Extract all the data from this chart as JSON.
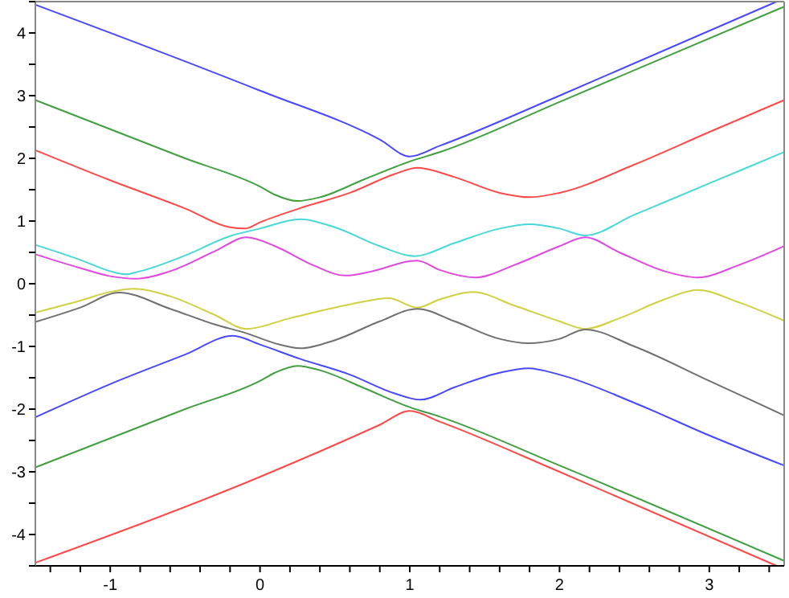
{
  "chart_data": {
    "type": "line",
    "xlim": [
      -1.5,
      3.5
    ],
    "ylim": [
      -4.5,
      4.5
    ],
    "xticks": [
      {
        "value": -1.4,
        "label": null
      },
      {
        "value": -1.2,
        "label": null
      },
      -1,
      {
        "value": -0.8,
        "label": null
      },
      {
        "value": -0.6,
        "label": null
      },
      {
        "value": -0.4,
        "label": null
      },
      {
        "value": -0.2,
        "label": null
      },
      0,
      {
        "value": 0.2,
        "label": null
      },
      {
        "value": 0.4,
        "label": null
      },
      {
        "value": 0.6,
        "label": null
      },
      {
        "value": 0.8,
        "label": null
      },
      1,
      {
        "value": 1.2,
        "label": null
      },
      {
        "value": 1.4,
        "label": null
      },
      {
        "value": 1.6,
        "label": null
      },
      {
        "value": 1.8,
        "label": null
      },
      2,
      {
        "value": 2.2,
        "label": null
      },
      {
        "value": 2.4,
        "label": null
      },
      {
        "value": 2.6,
        "label": null
      },
      {
        "value": 2.8,
        "label": null
      },
      3,
      {
        "value": 3.2,
        "label": null
      },
      {
        "value": 3.4,
        "label": null
      }
    ],
    "yticks": [
      {
        "value": -4.5,
        "label": null
      },
      -4,
      {
        "value": -3.5,
        "label": null
      },
      -3,
      {
        "value": -2.5,
        "label": null
      },
      -2,
      {
        "value": -1.5,
        "label": null
      },
      -1,
      {
        "value": -0.5,
        "label": null
      },
      0,
      {
        "value": 0.5,
        "label": null
      },
      1,
      {
        "value": 1.5,
        "label": null
      },
      2,
      {
        "value": 2.5,
        "label": null
      },
      3,
      {
        "value": 3.5,
        "label": null
      },
      4,
      {
        "value": 4.5,
        "label": null
      }
    ],
    "grid": false,
    "marker": "none",
    "line_style": "solid",
    "series": [
      {
        "color": "#4848ff",
        "x": [
          -1.5,
          0,
          0.8,
          1.0,
          1.2,
          2,
          3.45
        ],
        "values": [
          4.45,
          3.08,
          2.3,
          2.03,
          2.2,
          3.0,
          4.5
        ]
      },
      {
        "color": "#40a040",
        "x": [
          -1.5,
          -0.5,
          0,
          0.1,
          0.25,
          0.4,
          0.7,
          1.0,
          1.2,
          2,
          3.5
        ],
        "values": [
          2.93,
          2.0,
          1.55,
          1.42,
          1.32,
          1.38,
          1.67,
          1.95,
          2.1,
          2.9,
          4.42
        ]
      },
      {
        "color": "#ff4848",
        "x": [
          -1.5,
          -1.0,
          -0.5,
          -0.2,
          -0.1,
          0,
          0.3,
          0.6,
          0.9,
          1.05,
          1.3,
          1.6,
          1.8,
          2.0,
          2.5,
          3.0,
          3.5
        ],
        "values": [
          2.13,
          1.65,
          1.2,
          0.9,
          0.88,
          0.98,
          1.23,
          1.45,
          1.75,
          1.85,
          1.7,
          1.45,
          1.38,
          1.45,
          1.9,
          2.42,
          2.93
        ]
      },
      {
        "color": "#48d8d8",
        "x": [
          -1.5,
          -1.2,
          -1.0,
          -0.9,
          -0.8,
          -0.5,
          -0.2,
          0,
          0.27,
          0.5,
          0.8,
          1.03,
          1.3,
          1.6,
          1.8,
          2.0,
          2.17,
          2.5,
          3.0,
          3.5
        ],
        "values": [
          0.62,
          0.38,
          0.2,
          0.15,
          0.2,
          0.45,
          0.76,
          0.88,
          1.03,
          0.9,
          0.6,
          0.44,
          0.65,
          0.88,
          0.95,
          0.88,
          0.77,
          1.1,
          1.6,
          2.1
        ]
      },
      {
        "color": "#e048e0",
        "x": [
          -1.5,
          -1.2,
          -1.0,
          -0.83,
          -0.6,
          -0.3,
          -0.09,
          0.1,
          0.35,
          0.57,
          0.75,
          1.0,
          1.05,
          1.2,
          1.44,
          1.7,
          2.0,
          2.17,
          2.4,
          2.7,
          2.92,
          3.2,
          3.5
        ],
        "values": [
          0.47,
          0.25,
          0.12,
          0.08,
          0.2,
          0.52,
          0.74,
          0.6,
          0.3,
          0.13,
          0.2,
          0.36,
          0.37,
          0.22,
          0.1,
          0.3,
          0.6,
          0.74,
          0.5,
          0.2,
          0.1,
          0.3,
          0.6
        ]
      },
      {
        "color": "#d0d040",
        "x": [
          -1.5,
          -1.2,
          -1.0,
          -0.84,
          -0.6,
          -0.3,
          -0.09,
          0.2,
          0.6,
          0.86,
          1.05,
          1.2,
          1.42,
          1.7,
          2.0,
          2.17,
          2.4,
          2.7,
          2.92,
          3.2,
          3.5
        ],
        "values": [
          -0.46,
          -0.27,
          -0.13,
          -0.08,
          -0.2,
          -0.5,
          -0.72,
          -0.55,
          -0.33,
          -0.23,
          -0.38,
          -0.25,
          -0.13,
          -0.35,
          -0.6,
          -0.72,
          -0.55,
          -0.25,
          -0.1,
          -0.3,
          -0.59
        ]
      },
      {
        "color": "#707070",
        "x": [
          -1.5,
          -1.2,
          -0.94,
          -0.6,
          -0.3,
          -0.09,
          0.1,
          0.27,
          0.5,
          0.8,
          1.05,
          1.3,
          1.6,
          1.79,
          2.0,
          2.17,
          2.5,
          3.0,
          3.5
        ],
        "values": [
          -0.61,
          -0.38,
          -0.14,
          -0.4,
          -0.65,
          -0.79,
          -0.95,
          -1.03,
          -0.9,
          -0.6,
          -0.4,
          -0.6,
          -0.88,
          -0.95,
          -0.88,
          -0.73,
          -1.0,
          -1.55,
          -2.1
        ]
      },
      {
        "color": "#4848ff",
        "x": [
          -1.5,
          -1.0,
          -0.5,
          -0.18,
          0,
          0.27,
          0.6,
          0.9,
          1.07,
          1.3,
          1.6,
          1.79,
          2.0,
          2.5,
          3.0,
          3.5
        ],
        "values": [
          -2.13,
          -1.6,
          -1.13,
          -0.83,
          -0.97,
          -1.2,
          -1.45,
          -1.75,
          -1.85,
          -1.65,
          -1.42,
          -1.35,
          -1.45,
          -1.9,
          -2.42,
          -2.9
        ]
      },
      {
        "color": "#40a040",
        "x": [
          -1.5,
          -0.5,
          0,
          0.1,
          0.25,
          0.4,
          0.7,
          1.0,
          1.2,
          2,
          3.5
        ],
        "values": [
          -2.93,
          -2.0,
          -1.55,
          -1.42,
          -1.31,
          -1.38,
          -1.67,
          -1.97,
          -2.12,
          -2.9,
          -4.42
        ]
      },
      {
        "color": "#ff4848",
        "x": [
          -1.5,
          0,
          0.8,
          1.0,
          1.2,
          2,
          3.45
        ],
        "values": [
          -4.45,
          -3.08,
          -2.25,
          -2.03,
          -2.2,
          -3.0,
          -4.5
        ]
      }
    ]
  }
}
